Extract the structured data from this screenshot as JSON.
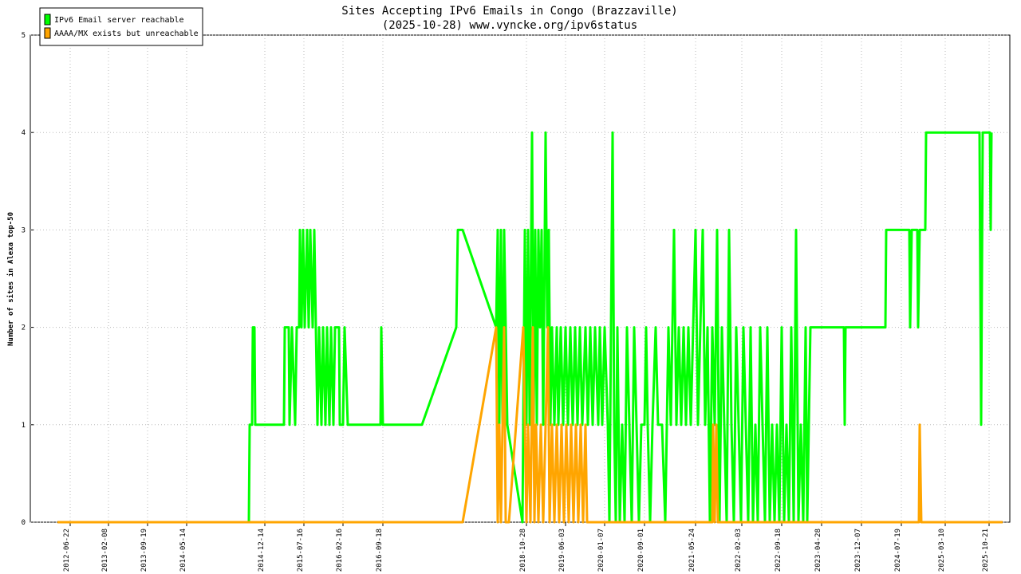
{
  "chart_data": {
    "type": "line",
    "title": "Sites Accepting IPv6 Emails in Congo (Brazzaville)",
    "subtitle": "(2025-10-28) www.vyncke.org/ipv6status",
    "y_label": "Number of sites in Alexa top-50",
    "xlim": [
      38,
      1266
    ],
    "ylim": [
      0,
      5
    ],
    "yticks": [
      0,
      1,
      2,
      3,
      4,
      5
    ],
    "grid": true,
    "legend": "top-left",
    "xticks": [
      {
        "value": 88,
        "label": "2012-06-22"
      },
      {
        "value": 136,
        "label": "2013-02-08"
      },
      {
        "value": 185,
        "label": "2013-09-19"
      },
      {
        "value": 234,
        "label": "2014-05-14"
      },
      {
        "value": 332,
        "label": "2014-12-14"
      },
      {
        "value": 381,
        "label": "2015-07-16"
      },
      {
        "value": 430,
        "label": "2016-02-16"
      },
      {
        "value": 480,
        "label": "2016-09-18"
      },
      {
        "value": 660,
        "label": "2018-10-28"
      },
      {
        "value": 709,
        "label": "2019-06-03"
      },
      {
        "value": 758,
        "label": "2020-01-07"
      },
      {
        "value": 808,
        "label": "2020-09-01"
      },
      {
        "value": 872,
        "label": "2021-05-24"
      },
      {
        "value": 930,
        "label": "2022-02-03"
      },
      {
        "value": 980,
        "label": "2022-09-18"
      },
      {
        "value": 1030,
        "label": "2023-04-28"
      },
      {
        "value": 1080,
        "label": "2023-12-07"
      },
      {
        "value": 1130,
        "label": "2024-07-19"
      },
      {
        "value": 1185,
        "label": "2025-03-10"
      },
      {
        "value": 1240,
        "label": "2025-10-21"
      }
    ],
    "series": [
      {
        "name": "IPv6 Email server reachable",
        "color": "#00ff00",
        "x": [
          72,
          312,
          313,
          316,
          317,
          319,
          320,
          356,
          357,
          362,
          363,
          366,
          370,
          372,
          375,
          376,
          378,
          380,
          382,
          385,
          387,
          389,
          392,
          394,
          396,
          398,
          400,
          403,
          405,
          408,
          410,
          413,
          415,
          418,
          420,
          425,
          426,
          430,
          432,
          436,
          477,
          478,
          480,
          529,
          572,
          574,
          580,
          622,
          624,
          626,
          628,
          630,
          632,
          634,
          636,
          655,
          658,
          660,
          662,
          664,
          667,
          669,
          671,
          673,
          675,
          677,
          679,
          681,
          684,
          686,
          688,
          690,
          692,
          695,
          698,
          700,
          703,
          706,
          709,
          712,
          715,
          718,
          721,
          724,
          727,
          730,
          734,
          737,
          740,
          743,
          746,
          750,
          752,
          755,
          758,
          762,
          764,
          766,
          768,
          770,
          772,
          774,
          777,
          780,
          783,
          786,
          789,
          792,
          795,
          798,
          801,
          804,
          808,
          810,
          812,
          815,
          818,
          822,
          825,
          830,
          834,
          838,
          841,
          845,
          848,
          851,
          854,
          857,
          860,
          863,
          866,
          869,
          872,
          875,
          878,
          881,
          884,
          887,
          890,
          893,
          896,
          899,
          902,
          905,
          908,
          911,
          914,
          917,
          920,
          923,
          926,
          929,
          932,
          935,
          938,
          941,
          944,
          947,
          950,
          953,
          956,
          959,
          962,
          965,
          968,
          971,
          974,
          977,
          980,
          983,
          986,
          989,
          992,
          995,
          998,
          1001,
          1004,
          1007,
          1010,
          1012,
          1014,
          1016,
          1058,
          1059,
          1060,
          1110,
          1111,
          1140,
          1141,
          1143,
          1150,
          1151,
          1153,
          1160,
          1161,
          1228,
          1230,
          1232,
          1241,
          1242,
          1243
        ],
        "values": [
          0,
          0,
          1,
          1,
          2,
          2,
          1,
          1,
          2,
          2,
          1,
          2,
          1,
          2,
          2,
          3,
          2,
          3,
          2,
          3,
          2,
          3,
          2,
          3,
          2,
          1,
          2,
          1,
          2,
          1,
          2,
          1,
          2,
          1,
          2,
          2,
          1,
          1,
          2,
          1,
          1,
          2,
          1,
          1,
          2,
          3,
          3,
          2,
          3,
          1,
          3,
          1,
          3,
          2,
          1,
          0,
          3,
          1,
          3,
          1,
          4,
          1,
          3,
          1,
          3,
          2,
          3,
          1,
          4,
          2,
          3,
          1,
          2,
          1,
          2,
          1,
          2,
          1,
          2,
          1,
          2,
          1,
          2,
          1,
          2,
          1,
          2,
          1,
          2,
          1,
          2,
          1,
          2,
          1,
          2,
          1,
          0,
          2,
          4,
          1,
          0,
          2,
          0,
          1,
          0,
          2,
          1,
          0,
          2,
          1,
          0,
          1,
          1,
          2,
          1,
          0,
          1,
          2,
          1,
          1,
          0,
          2,
          1,
          3,
          1,
          2,
          1,
          2,
          1,
          2,
          1,
          2,
          3,
          1,
          2,
          3,
          1,
          2,
          0,
          2,
          1,
          3,
          0,
          2,
          1,
          0,
          3,
          1,
          0,
          2,
          1,
          0,
          2,
          1,
          0,
          2,
          0,
          1,
          0,
          2,
          1,
          0,
          2,
          0,
          1,
          0,
          1,
          0,
          2,
          0,
          1,
          0,
          2,
          0,
          3,
          0,
          1,
          0,
          2,
          0,
          1,
          2,
          2,
          1,
          2,
          2,
          3,
          3,
          2,
          3,
          3,
          2,
          3,
          3,
          4,
          4,
          1,
          4,
          4,
          3,
          4
        ]
      },
      {
        "name": "AAAA/MX exists but unreachable",
        "color": "#ffa500",
        "x": [
          72,
          580,
          622,
          624,
          626,
          628,
          632,
          634,
          638,
          656,
          660,
          662,
          665,
          668,
          670,
          672,
          675,
          678,
          681,
          684,
          687,
          689,
          692,
          695,
          698,
          701,
          704,
          707,
          710,
          713,
          716,
          719,
          722,
          725,
          728,
          731,
          734,
          736,
          893,
          894,
          896,
          898,
          900,
          1152,
          1153,
          1155,
          1257
        ],
        "values": [
          0,
          0,
          2,
          0,
          1,
          0,
          2,
          0,
          0,
          2,
          0,
          1,
          0,
          2,
          0,
          1,
          0,
          1,
          0,
          1,
          2,
          0,
          1,
          0,
          1,
          0,
          1,
          0,
          1,
          0,
          1,
          0,
          1,
          0,
          1,
          0,
          1,
          0,
          0,
          1,
          0,
          1,
          0,
          0,
          1,
          0,
          0
        ]
      }
    ]
  }
}
